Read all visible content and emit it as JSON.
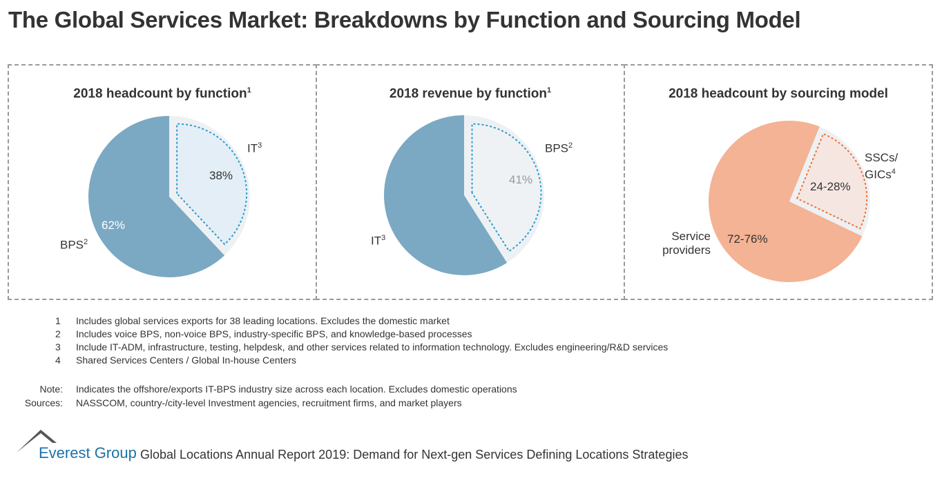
{
  "title": "The Global Services Market: Breakdowns by Function and Sourcing Model",
  "chart_data": [
    {
      "type": "pie",
      "title": "2018 headcount by function",
      "title_sup": "1",
      "slices": [
        {
          "label": "IT",
          "sup": "3",
          "value": 38,
          "value_label": "38%",
          "color": "#e3eef6",
          "exploded": true
        },
        {
          "label": "BPS",
          "sup": "2",
          "value": 62,
          "value_label": "62%",
          "color": "#7ba9c3"
        }
      ]
    },
    {
      "type": "pie",
      "title": "2018 revenue by function",
      "title_sup": "1",
      "slices": [
        {
          "label": "BPS",
          "sup": "2",
          "value": 41,
          "value_label": "41%",
          "color": "#eef2f4",
          "exploded": true
        },
        {
          "label": "IT",
          "sup": "3",
          "value": 59,
          "value_label": "",
          "color": "#7ba9c3"
        }
      ]
    },
    {
      "type": "pie",
      "title": "2018 headcount by sourcing model",
      "title_sup": "",
      "slices": [
        {
          "label": "SSCs/ GICs",
          "sup": "4",
          "value": 26,
          "value_label": "24-28%",
          "color": "#f6e6e2",
          "exploded": true
        },
        {
          "label": "Service providers",
          "sup": "",
          "value": 74,
          "value_label": "72-76%",
          "color": "#f4b394"
        }
      ]
    }
  ],
  "footnotes": [
    {
      "n": "1",
      "text": "Includes global services exports for 38 leading locations. Excludes the domestic market"
    },
    {
      "n": "2",
      "text": "Includes voice BPS, non-voice BPS, industry-specific BPS, and knowledge-based processes"
    },
    {
      "n": "3",
      "text": "Include IT-ADM, infrastructure, testing, helpdesk, and other services related to information technology. Excludes engineering/R&D services"
    },
    {
      "n": "4",
      "text": "Shared Services Centers / Global In-house Centers"
    }
  ],
  "note_label": "Note:",
  "note": "Indicates the offshore/exports IT-BPS industry size across each location. Excludes domestic operations",
  "sources_label": "Sources:",
  "sources": "NASSCOM, country-/city-level Investment agencies, recruitment firms, and market players",
  "footer": {
    "brand": "Everest Group",
    "report": "Global Locations Annual Report 2019: Demand for Next-gen Services Defining Locations Strategies"
  }
}
